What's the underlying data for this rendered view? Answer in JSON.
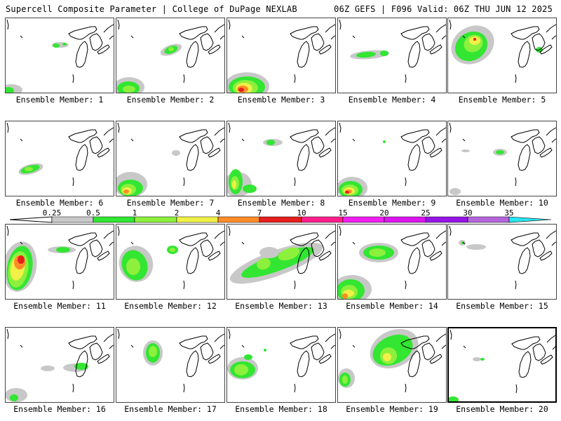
{
  "header": {
    "left": "Supercell Composite Parameter | College of DuPage NEXLAB",
    "right": "06Z GEFS | F096 Valid: 06Z THU JUN 12 2025"
  },
  "member_label": "Ensemble Member:",
  "members": [
    "1",
    "2",
    "3",
    "4",
    "5",
    "6",
    "7",
    "8",
    "9",
    "10",
    "11",
    "12",
    "13",
    "14",
    "15",
    "16",
    "17",
    "18",
    "19",
    "20"
  ],
  "colorbar": {
    "labels": [
      "0.25",
      "0.5",
      "1",
      "2",
      "4",
      "7",
      "10",
      "15",
      "20",
      "25",
      "30",
      "35"
    ],
    "colors": [
      "#c8c8c8",
      "#32e632",
      "#8cf03c",
      "#f0f046",
      "#ff8c28",
      "#e61e1e",
      "#ff1e8c",
      "#f01ef0",
      "#dc14f0",
      "#9614e6",
      "#b464dc",
      "#28e6f0"
    ]
  },
  "colors": {
    "gray": "#c8c8c8",
    "green": "#32e632",
    "lime": "#8cf03c",
    "yellow": "#f0f046",
    "orange": "#ff8c28",
    "red": "#e61e1e"
  }
}
